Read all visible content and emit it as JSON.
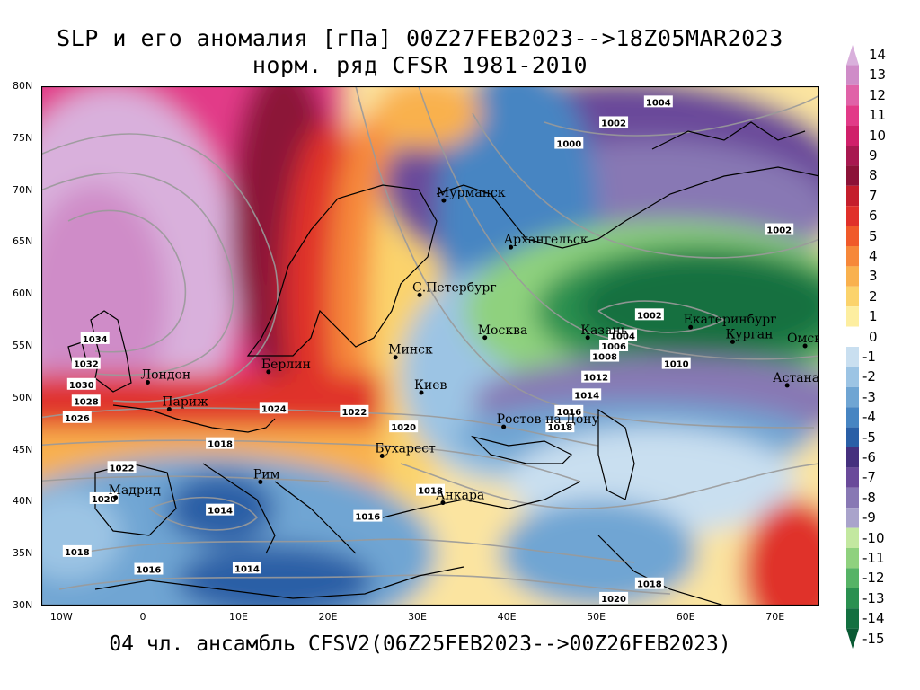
{
  "title_line1": "SLP и его аномалия [гПа] 00Z27FEB2023-->18Z05MAR2023",
  "title_line2": "норм. ряд CFSR 1981-2010",
  "footer": "04 чл. ансамбль CFSV2(06Z25FEB2023-->00Z26FEB2023)",
  "map": {
    "lon_range": [
      -12,
      75
    ],
    "lat_range": [
      30,
      80
    ],
    "lat_ticks": [
      "30N",
      "35N",
      "40N",
      "45N",
      "50N",
      "55N",
      "60N",
      "65N",
      "70N",
      "75N",
      "80N"
    ],
    "lon_ticks": [
      "10W",
      "0",
      "10E",
      "20E",
      "30E",
      "40E",
      "50E",
      "60E",
      "70E"
    ],
    "cities": [
      {
        "name": "Мурманск",
        "lon": 33,
        "lat": 69
      },
      {
        "name": "Архангельск",
        "lon": 40.5,
        "lat": 64.5
      },
      {
        "name": "С.Петербург",
        "lon": 30.3,
        "lat": 59.9
      },
      {
        "name": "Москва",
        "lon": 37.6,
        "lat": 55.8
      },
      {
        "name": "Казань",
        "lon": 49.1,
        "lat": 55.8
      },
      {
        "name": "Екатеринбург",
        "lon": 60.6,
        "lat": 56.8
      },
      {
        "name": "Курган",
        "lon": 65.3,
        "lat": 55.4
      },
      {
        "name": "Омск",
        "lon": 73.4,
        "lat": 55
      },
      {
        "name": "Астана",
        "lon": 71.4,
        "lat": 51.2
      },
      {
        "name": "Минск",
        "lon": 27.6,
        "lat": 53.9
      },
      {
        "name": "Киев",
        "lon": 30.5,
        "lat": 50.5
      },
      {
        "name": "Ростов-на-Дону",
        "lon": 39.7,
        "lat": 47.2
      },
      {
        "name": "Бухарест",
        "lon": 26.1,
        "lat": 44.4
      },
      {
        "name": "Анкара",
        "lon": 32.9,
        "lat": 39.9
      },
      {
        "name": "Рим",
        "lon": 12.5,
        "lat": 41.9
      },
      {
        "name": "Мадрид",
        "lon": -3.7,
        "lat": 40.4
      },
      {
        "name": "Париж",
        "lon": 2.3,
        "lat": 48.9
      },
      {
        "name": "Лондон",
        "lon": -0.1,
        "lat": 51.5
      },
      {
        "name": "Берлин",
        "lon": 13.4,
        "lat": 52.5
      }
    ],
    "isobar_labels": [
      {
        "text": "1004",
        "lon": 57,
        "lat": 78.5
      },
      {
        "text": "1002",
        "lon": 52,
        "lat": 76.5
      },
      {
        "text": "1000",
        "lon": 47,
        "lat": 74.5
      },
      {
        "text": "1002",
        "lon": 70.5,
        "lat": 66.2
      },
      {
        "text": "1002",
        "lon": 56,
        "lat": 58
      },
      {
        "text": "1004",
        "lon": 53,
        "lat": 56
      },
      {
        "text": "1006",
        "lon": 52,
        "lat": 55
      },
      {
        "text": "1008",
        "lon": 51,
        "lat": 54
      },
      {
        "text": "1010",
        "lon": 59,
        "lat": 53.3
      },
      {
        "text": "1012",
        "lon": 50,
        "lat": 52
      },
      {
        "text": "1014",
        "lon": 49,
        "lat": 50.3
      },
      {
        "text": "1016",
        "lon": 47,
        "lat": 48.7
      },
      {
        "text": "1018",
        "lon": 46,
        "lat": 47.2
      },
      {
        "text": "1034",
        "lon": -6,
        "lat": 55.7
      },
      {
        "text": "1032",
        "lon": -7,
        "lat": 53.3
      },
      {
        "text": "1030",
        "lon": -7.5,
        "lat": 51.3
      },
      {
        "text": "1028",
        "lon": -7,
        "lat": 49.7
      },
      {
        "text": "1026",
        "lon": -8,
        "lat": 48.1
      },
      {
        "text": "1024",
        "lon": 14,
        "lat": 49
      },
      {
        "text": "1022",
        "lon": 23,
        "lat": 48.7
      },
      {
        "text": "1020",
        "lon": 28.5,
        "lat": 47.2
      },
      {
        "text": "1018",
        "lon": 8,
        "lat": 45.6
      },
      {
        "text": "1022",
        "lon": -3,
        "lat": 43.3
      },
      {
        "text": "1020",
        "lon": -5,
        "lat": 40.3
      },
      {
        "text": "1014",
        "lon": 8,
        "lat": 39.2
      },
      {
        "text": "1016",
        "lon": 24.5,
        "lat": 38.6
      },
      {
        "text": "1018",
        "lon": 31.5,
        "lat": 41.1
      },
      {
        "text": "1018",
        "lon": -8,
        "lat": 35.2
      },
      {
        "text": "1016",
        "lon": 0,
        "lat": 33.5
      },
      {
        "text": "1014",
        "lon": 11,
        "lat": 33.6
      },
      {
        "text": "1020",
        "lon": 52,
        "lat": 30.7
      },
      {
        "text": "1018",
        "lon": 56,
        "lat": 32.1
      }
    ]
  },
  "colorbar": {
    "levels": [
      "14",
      "13",
      "12",
      "11",
      "10",
      "9",
      "8",
      "7",
      "6",
      "5",
      "4",
      "3",
      "2",
      "1",
      "0",
      "-1",
      "-2",
      "-3",
      "-4",
      "-5",
      "-6",
      "-7",
      "-8",
      "-9",
      "-10",
      "-11",
      "-12",
      "-13",
      "-14",
      "-15"
    ],
    "colors": [
      "#d9b0dc",
      "#cf8cc8",
      "#e062a8",
      "#e23a88",
      "#d0206a",
      "#a81850",
      "#8c1238",
      "#c41e2c",
      "#e0302a",
      "#f05a2a",
      "#f6883a",
      "#f9b14e",
      "#fbd36c",
      "#fdeea0",
      "#ffffff",
      "#c9dff0",
      "#9cc4e4",
      "#6fa5d3",
      "#4785c2",
      "#2a5fa6",
      "#45307e",
      "#6a4a9a",
      "#8878b4",
      "#a9a3cb",
      "#c3e8a0",
      "#8fd17e",
      "#56b366",
      "#2a9050",
      "#137040",
      "#0a5a34"
    ]
  }
}
